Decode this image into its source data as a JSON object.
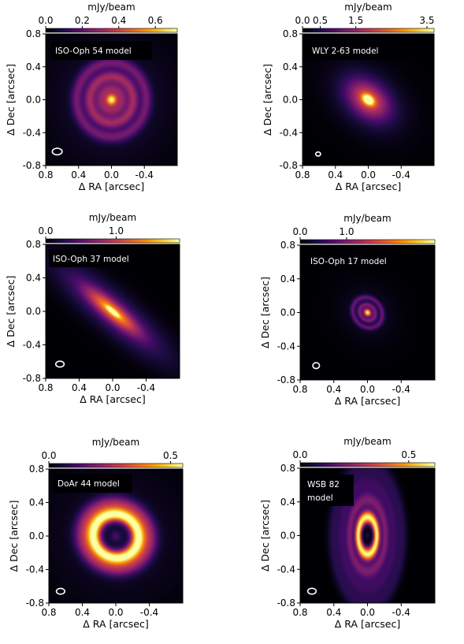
{
  "colors": {
    "cmap_stops": [
      "#000004",
      "#1b0c41",
      "#4a0c6b",
      "#781c6d",
      "#a52c60",
      "#cf4446",
      "#ed6925",
      "#fb9b06",
      "#f7d13d",
      "#fcffa4"
    ],
    "beam": "#ffffff",
    "background": "#000004",
    "label_box": "#000004",
    "label_text": "#ffffff"
  },
  "chart_data": [
    {
      "type": "heatmap",
      "label": "ISO-Oph 54 model",
      "colorbar_label": "mJy/beam",
      "colorbar_ticks": [
        "0.0",
        "0.2",
        "0.4",
        "0.6"
      ],
      "colorbar_tick_values": [
        0.0,
        0.2,
        0.4,
        0.6
      ],
      "vmin": 0.0,
      "vmax": 0.72,
      "xlabel": "Δ RA [arcsec]",
      "ylabel": "Δ Dec [arcsec]",
      "xticks": [
        "0.8",
        "0.4",
        "0.0",
        "-0.4"
      ],
      "xtick_values": [
        0.8,
        0.4,
        0.0,
        -0.4
      ],
      "yticks": [
        "0.8",
        "0.4",
        "0.0",
        "-0.4",
        "-0.8"
      ],
      "ytick_values": [
        0.8,
        0.4,
        0.0,
        -0.4,
        -0.8
      ],
      "xlim": [
        0.8,
        -0.8
      ],
      "ylim": [
        -0.8,
        0.8
      ],
      "structure": "central peak with multiple faint concentric rings",
      "inclination_deg": 20,
      "position_angle_deg": 0,
      "beam": {
        "major": 0.06,
        "minor": 0.04,
        "center": [
          0.66,
          -0.63
        ]
      }
    },
    {
      "type": "heatmap",
      "label": "WLY 2-63 model",
      "colorbar_label": "mJy/beam",
      "colorbar_ticks": [
        "0.0",
        "0.5",
        "1.5",
        "3.5"
      ],
      "colorbar_tick_values": [
        0.0,
        0.5,
        1.5,
        3.5
      ],
      "vmin": 0.0,
      "vmax": 3.7,
      "xlabel": "Δ RA [arcsec]",
      "ylabel": "Δ Dec [arcsec]",
      "xticks": [
        "0.8",
        "0.4",
        "0.0",
        "-0.4"
      ],
      "xtick_values": [
        0.8,
        0.4,
        0.0,
        -0.4
      ],
      "yticks": [
        "0.8",
        "0.4",
        "0.0",
        "-0.4",
        "-0.8"
      ],
      "ytick_values": [
        0.8,
        0.4,
        0.0,
        -0.4,
        -0.8
      ],
      "xlim": [
        0.8,
        -0.8
      ],
      "ylim": [
        -0.8,
        0.8
      ],
      "structure": "compact elliptical disk with central peak",
      "inclination_deg": 47,
      "position_angle_deg": 50,
      "beam": {
        "major": 0.03,
        "minor": 0.025,
        "center": [
          0.61,
          -0.66
        ]
      }
    },
    {
      "type": "heatmap",
      "label": "ISO-Oph 37 model",
      "colorbar_label": "mJy/beam",
      "colorbar_ticks": [
        "0.0",
        "1.0"
      ],
      "colorbar_tick_values": [
        0.0,
        1.0
      ],
      "vmin": 0.0,
      "vmax": 1.9,
      "xlabel": "Δ RA [arcsec]",
      "ylabel": "Δ Dec [arcsec]",
      "xticks": [
        "0.8",
        "0.4",
        "0.0",
        "-0.4"
      ],
      "xtick_values": [
        0.8,
        0.4,
        0.0,
        -0.4
      ],
      "yticks": [
        "0.8",
        "0.4",
        "0.0",
        "-0.4",
        "-0.8"
      ],
      "ytick_values": [
        0.8,
        0.4,
        0.0,
        -0.4,
        -0.8
      ],
      "xlim": [
        0.8,
        -0.8
      ],
      "ylim": [
        -0.8,
        0.8
      ],
      "structure": "highly inclined elongated disk",
      "inclination_deg": 75,
      "position_angle_deg": 50,
      "beam": {
        "major": 0.05,
        "minor": 0.035,
        "center": [
          0.63,
          -0.63
        ]
      }
    },
    {
      "type": "heatmap",
      "label": "ISO-Oph 17 model",
      "colorbar_label": "mJy/beam",
      "colorbar_ticks": [
        "0.0",
        "1.0"
      ],
      "colorbar_tick_values": [
        0.0,
        1.0
      ],
      "vmin": 0.0,
      "vmax": 2.9,
      "xlabel": "Δ RA [arcsec]",
      "ylabel": "Δ Dec [arcsec]",
      "xticks": [
        "0.8",
        "0.4",
        "0.0",
        "-0.4"
      ],
      "xtick_values": [
        0.8,
        0.4,
        0.0,
        -0.4
      ],
      "yticks": [
        "0.8",
        "0.4",
        "0.0",
        "-0.4",
        "-0.8"
      ],
      "ytick_values": [
        0.8,
        0.4,
        0.0,
        -0.4,
        -0.8
      ],
      "xlim": [
        0.8,
        -0.8
      ],
      "ylim": [
        -0.8,
        0.8
      ],
      "structure": "compact disk with central peak and two narrow rings",
      "inclination_deg": 30,
      "position_angle_deg": 40,
      "beam": {
        "major": 0.04,
        "minor": 0.035,
        "center": [
          0.61,
          -0.63
        ]
      }
    },
    {
      "type": "heatmap",
      "label": "DoAr 44 model",
      "colorbar_label": "mJy/beam",
      "colorbar_ticks": [
        "0.0",
        "0.5"
      ],
      "colorbar_tick_values": [
        0.0,
        0.5
      ],
      "vmin": 0.0,
      "vmax": 0.55,
      "xlabel": "Δ RA [arcsec]",
      "ylabel": "Δ Dec [arcsec]",
      "xticks": [
        "0.8",
        "0.4",
        "0.0",
        "-0.4"
      ],
      "xtick_values": [
        0.8,
        0.4,
        0.0,
        -0.4
      ],
      "yticks": [
        "0.8",
        "0.4",
        "0.0",
        "-0.4",
        "-0.8"
      ],
      "ytick_values": [
        0.8,
        0.4,
        0.0,
        -0.4,
        -0.8
      ],
      "xlim": [
        0.8,
        -0.8
      ],
      "ylim": [
        -0.8,
        0.8
      ],
      "structure": "bright ring with a dark inner cavity",
      "inclination_deg": 20,
      "position_angle_deg": 60,
      "beam": {
        "major": 0.05,
        "minor": 0.035,
        "center": [
          0.66,
          -0.66
        ]
      }
    },
    {
      "type": "heatmap",
      "label": "WSB 82 model",
      "colorbar_label": "mJy/beam",
      "colorbar_ticks": [
        "0.0",
        "0.5"
      ],
      "colorbar_tick_values": [
        0.0,
        0.5
      ],
      "vmin": 0.0,
      "vmax": 0.62,
      "xlabel": "Δ RA [arcsec]",
      "ylabel": "Δ Dec [arcsec]",
      "xticks": [
        "0.8",
        "0.4",
        "0.0",
        "-0.4"
      ],
      "xtick_values": [
        0.8,
        0.4,
        0.0,
        -0.4
      ],
      "yticks": [
        "0.8",
        "0.4",
        "0.0",
        "-0.4",
        "-0.8"
      ],
      "ytick_values": [
        0.8,
        0.4,
        0.0,
        -0.4,
        -0.8
      ],
      "xlim": [
        0.8,
        -0.8
      ],
      "ylim": [
        -0.8,
        0.8
      ],
      "structure": "inclined disk with bright inner ring, cavity and faint outer rings",
      "inclination_deg": 60,
      "position_angle_deg": 0,
      "beam": {
        "major": 0.05,
        "minor": 0.035,
        "center": [
          0.66,
          -0.66
        ]
      }
    }
  ]
}
